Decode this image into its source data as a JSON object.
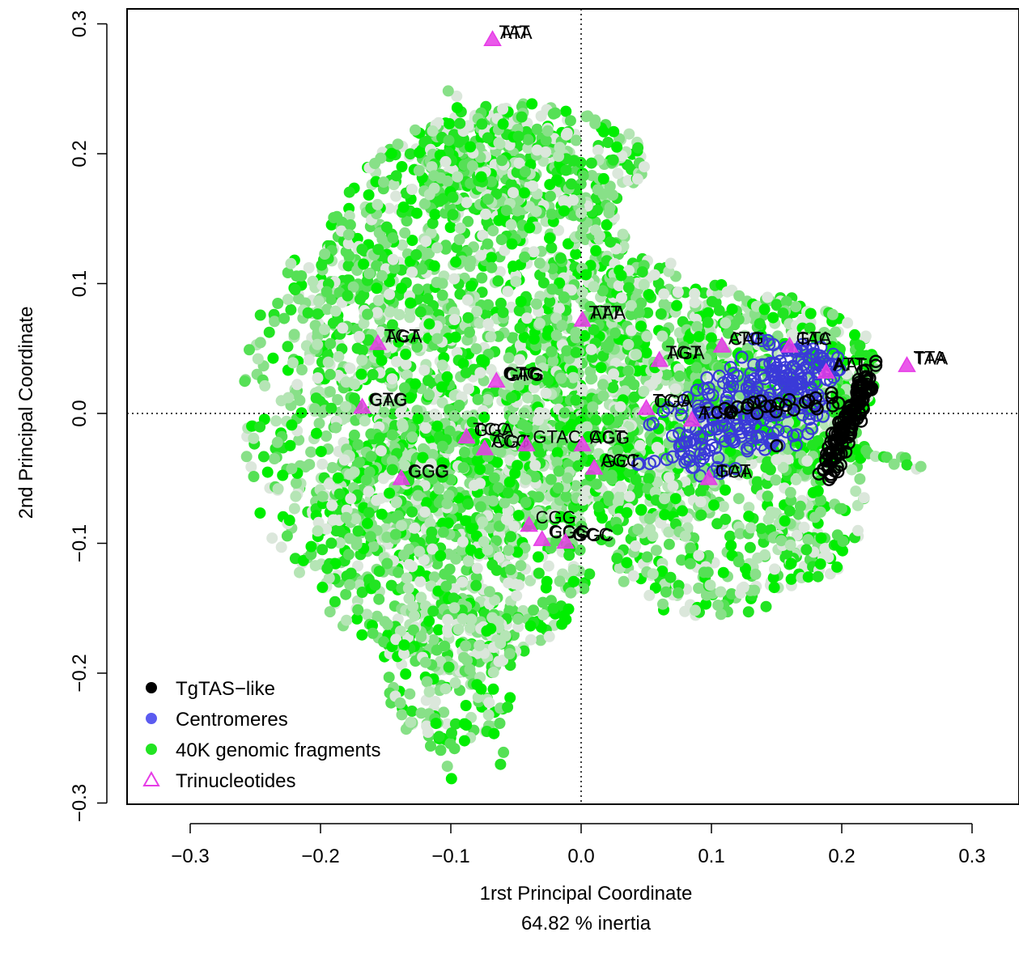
{
  "chart_data": {
    "type": "scatter",
    "xlabel": "1rst Principal Coordinate",
    "xlabel_sub": "64.82 % inertia",
    "ylabel": "2nd Principal Coordinate",
    "xlim": [
      -0.35,
      0.35
    ],
    "ylim": [
      -0.3,
      0.3
    ],
    "x_ticks": [
      -0.3,
      -0.2,
      -0.1,
      0.0,
      0.1,
      0.2,
      0.3
    ],
    "x_tick_labels": [
      "−0.3",
      "−0.2",
      "−0.1",
      "0.0",
      "0.1",
      "0.2",
      "0.3"
    ],
    "y_ticks": [
      -0.3,
      -0.2,
      -0.1,
      0.0,
      0.1,
      0.2,
      0.3
    ],
    "y_tick_labels": [
      "−0.3",
      "−0.2",
      "−0.1",
      "0.0",
      "0.1",
      "0.2",
      "0.3"
    ],
    "reference_lines": {
      "x": 0,
      "y": 0,
      "style": "dotted"
    },
    "grid": false,
    "legend": {
      "position": "bottom-left",
      "entries": [
        {
          "label": "TgTAS−like",
          "symbol": "filled-circle",
          "color": "#000000"
        },
        {
          "label": "Centromeres",
          "symbol": "filled-circle",
          "color": "#5b5bf0"
        },
        {
          "label": "40K genomic fragments",
          "symbol": "filled-circle",
          "color": "#22e422"
        },
        {
          "label": "Trinucleotides",
          "symbol": "open-triangle",
          "color": "#e63ce6"
        }
      ]
    },
    "background_cloud": {
      "series": "40K genomic fragments",
      "shades": [
        "#00ee00",
        "#22e422",
        "#55e055",
        "#88e088",
        "#b5e5b5",
        "#dbe7db"
      ],
      "regions": [
        {
          "cx": -0.08,
          "cy": 0.06,
          "rx": 0.13,
          "ry": 0.17,
          "n": 1500
        },
        {
          "cx": -0.18,
          "cy": 0.0,
          "rx": 0.08,
          "ry": 0.14,
          "n": 400
        },
        {
          "cx": -0.1,
          "cy": -0.1,
          "rx": 0.11,
          "ry": 0.1,
          "n": 650
        },
        {
          "cx": -0.1,
          "cy": -0.2,
          "rx": 0.05,
          "ry": 0.06,
          "n": 150
        },
        {
          "cx": 0.04,
          "cy": 0.02,
          "rx": 0.1,
          "ry": 0.1,
          "n": 700
        },
        {
          "cx": 0.1,
          "cy": -0.07,
          "rx": 0.09,
          "ry": 0.09,
          "n": 450
        },
        {
          "cx": 0.15,
          "cy": 0.03,
          "rx": 0.08,
          "ry": 0.06,
          "n": 350
        },
        {
          "cx": -0.04,
          "cy": 0.19,
          "rx": 0.09,
          "ry": 0.05,
          "n": 300
        },
        {
          "cx": 0.18,
          "cy": -0.05,
          "rx": 0.04,
          "ry": 0.08,
          "n": 160
        }
      ],
      "streaks": [
        {
          "x1": -0.15,
          "y1": -0.05,
          "x2": -0.1,
          "y2": -0.28,
          "n": 25
        },
        {
          "x1": -0.13,
          "y1": -0.05,
          "x2": -0.06,
          "y2": -0.27,
          "n": 25
        },
        {
          "x1": 0.05,
          "y1": -0.05,
          "x2": 0.1,
          "y2": -0.13,
          "n": 18
        },
        {
          "x1": 0.17,
          "y1": -0.02,
          "x2": 0.26,
          "y2": -0.04,
          "n": 22
        },
        {
          "x1": 0.1,
          "y1": 0.1,
          "x2": 0.2,
          "y2": 0.05,
          "n": 20
        },
        {
          "x1": -0.07,
          "y1": 0.16,
          "x2": -0.1,
          "y2": 0.25,
          "n": 15
        }
      ]
    },
    "centromeres": {
      "series": "Centromeres",
      "color": "#3a3ad8",
      "regions": [
        {
          "cx": 0.14,
          "cy": 0.005,
          "rx": 0.05,
          "ry": 0.035,
          "n": 160
        },
        {
          "cx": 0.1,
          "cy": -0.02,
          "rx": 0.03,
          "ry": 0.03,
          "n": 50
        },
        {
          "cx": 0.17,
          "cy": 0.035,
          "rx": 0.03,
          "ry": 0.02,
          "n": 60
        }
      ],
      "streaks": [
        {
          "x1": 0.13,
          "y1": 0.06,
          "x2": 0.2,
          "y2": 0.04,
          "n": 18
        },
        {
          "x1": 0.04,
          "y1": -0.04,
          "x2": 0.1,
          "y2": -0.03,
          "n": 10
        },
        {
          "x1": 0.05,
          "y1": -0.01,
          "x2": 0.12,
          "y2": 0.04,
          "n": 12
        }
      ]
    },
    "tgtas": {
      "series": "TgTAS−like",
      "color": "#000000",
      "streaks": [
        {
          "x1": 0.185,
          "y1": -0.045,
          "x2": 0.218,
          "y2": 0.03,
          "n": 55
        },
        {
          "x1": 0.19,
          "y1": -0.05,
          "x2": 0.222,
          "y2": 0.025,
          "n": 45
        },
        {
          "x1": 0.2,
          "y1": -0.02,
          "x2": 0.222,
          "y2": 0.035,
          "n": 25
        },
        {
          "x1": 0.11,
          "y1": 0.005,
          "x2": 0.2,
          "y2": 0.01,
          "n": 22
        }
      ],
      "extra_points": [
        [
          0.15,
          -0.025
        ],
        [
          0.135,
          0.0
        ],
        [
          0.12,
          0.005
        ],
        [
          0.18,
          0.012
        ]
      ]
    },
    "trinucleotides": [
      {
        "x": -0.068,
        "y": 0.288,
        "labels": [
          "TAT",
          "ATA"
        ]
      },
      {
        "x": 0.25,
        "y": 0.037,
        "labels": [
          "TTA",
          "TAA"
        ]
      },
      {
        "x": 0.001,
        "y": 0.072,
        "labels": [
          "TTT",
          "AAA"
        ]
      },
      {
        "x": -0.156,
        "y": 0.054,
        "labels": [
          "TGT",
          "ACA"
        ]
      },
      {
        "x": -0.168,
        "y": 0.005,
        "labels": [
          "GTG",
          "CAC"
        ]
      },
      {
        "x": -0.138,
        "y": -0.05,
        "labels": [
          "GGG",
          "CCC"
        ]
      },
      {
        "x": -0.065,
        "y": 0.025,
        "labels": [
          "CTG",
          "CAG",
          "GTG"
        ]
      },
      {
        "x": 0.06,
        "y": 0.041,
        "labels": [
          "TGT",
          "AGA"
        ]
      },
      {
        "x": 0.108,
        "y": 0.052,
        "labels": [
          "ATG",
          "CAT"
        ]
      },
      {
        "x": 0.16,
        "y": 0.052,
        "labels": [
          "GTA",
          "TAC"
        ]
      },
      {
        "x": 0.188,
        "y": 0.032,
        "labels": [
          "ATT",
          "AAT"
        ]
      },
      {
        "x": -0.088,
        "y": -0.018,
        "labels": [
          "TCC",
          "GGA"
        ]
      },
      {
        "x": -0.074,
        "y": -0.027,
        "labels": [
          "ACG",
          "CGT"
        ]
      },
      {
        "x": -0.042,
        "y": -0.024,
        "labels": [
          "GTAC"
        ]
      },
      {
        "x": 0.001,
        "y": -0.024,
        "labels": [
          "CCT",
          "AGG"
        ]
      },
      {
        "x": 0.01,
        "y": -0.042,
        "labels": [
          "AGC",
          "GCT"
        ]
      },
      {
        "x": 0.085,
        "y": -0.005,
        "labels": [
          "ACG",
          "TCA"
        ]
      },
      {
        "x": 0.098,
        "y": -0.05,
        "labels": [
          "GAT",
          "TCA"
        ]
      },
      {
        "x": -0.04,
        "y": -0.086,
        "labels": [
          "CGG"
        ]
      },
      {
        "x": -0.03,
        "y": -0.097,
        "labels": [
          "GCG",
          "CGC"
        ]
      },
      {
        "x": -0.012,
        "y": -0.099,
        "labels": [
          "GCC",
          "GGC"
        ]
      },
      {
        "x": 0.05,
        "y": 0.004,
        "labels": [
          "TCG",
          "CGA"
        ]
      }
    ]
  }
}
